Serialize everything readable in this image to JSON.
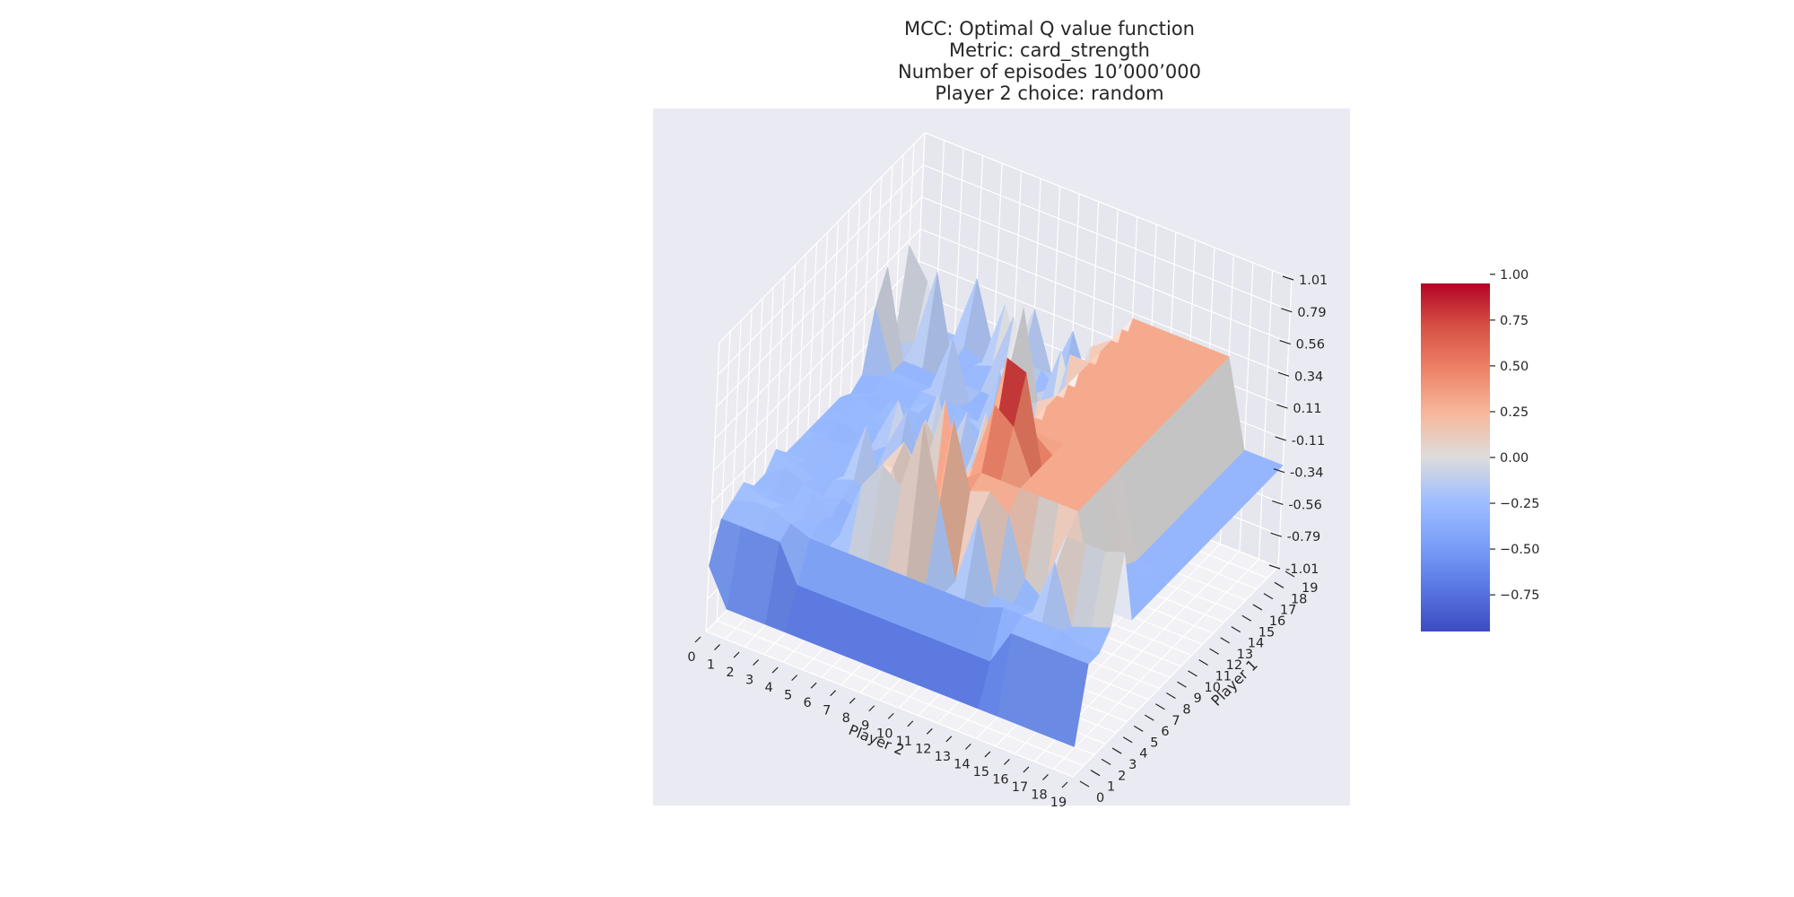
{
  "title_lines": [
    "MCC: Optimal Q value function",
    "Metric: card_strength",
    "Number of episodes 10’000’000",
    "Player 2 choice: random"
  ],
  "chart_data": {
    "type": "surface3d",
    "xlabel": "Player 2",
    "ylabel": "Player 1",
    "x_ticks": [
      "0",
      "1",
      "2",
      "3",
      "4",
      "5",
      "6",
      "7",
      "8",
      "9",
      "10",
      "11",
      "12",
      "13",
      "14",
      "15",
      "16",
      "17",
      "18",
      "19"
    ],
    "y_ticks": [
      "0",
      "1",
      "2",
      "3",
      "4",
      "5",
      "6",
      "7",
      "8",
      "9",
      "10",
      "11",
      "12",
      "13",
      "14",
      "15",
      "16",
      "17",
      "18",
      "19"
    ],
    "z_ticks": [
      "-1.01",
      "-0.79",
      "-0.56",
      "-0.34",
      "-0.11",
      "0.11",
      "0.34",
      "0.56",
      "0.79",
      "1.01"
    ],
    "zlim": [
      -1.01,
      1.01
    ],
    "colorbar_ticks": [
      "1.00",
      "0.75",
      "0.50",
      "0.25",
      "0.00",
      "−0.25",
      "−0.50",
      "−0.75"
    ],
    "colorbar_range": [
      -0.95,
      0.95
    ],
    "colormap": "coolwarm",
    "pane_color": "#eaeaf2",
    "grid": true,
    "z": [
      [
        -0.55,
        -0.3,
        -0.25,
        -0.2,
        -0.3,
        -0.3,
        -0.2,
        -0.3,
        -0.3,
        -0.3,
        -0.3,
        -0.3,
        -0.3,
        -0.35,
        -0.3,
        0.1,
        0.3,
        -0.3,
        0.3,
        -0.3
      ],
      [
        -0.8,
        -0.3,
        -0.2,
        -0.25,
        -0.3,
        -0.2,
        -0.25,
        -0.3,
        -0.2,
        -0.3,
        -0.25,
        -0.3,
        -0.25,
        -0.3,
        -0.25,
        -0.3,
        -0.3,
        -0.25,
        0.1,
        -0.3
      ],
      [
        -0.8,
        -0.3,
        -0.2,
        -0.25,
        -0.3,
        -0.25,
        -0.3,
        -0.25,
        -0.3,
        -0.3,
        -0.3,
        -0.25,
        -0.3,
        -0.3,
        -0.25,
        -0.3,
        -0.3,
        0.3,
        -0.3,
        -0.3
      ],
      [
        -0.8,
        -0.3,
        -0.25,
        -0.3,
        -0.2,
        -0.3,
        -0.25,
        -0.3,
        -0.25,
        -0.3,
        -0.25,
        -0.3,
        -0.2,
        -0.3,
        -0.25,
        -0.3,
        -0.3,
        -0.3,
        -0.25,
        0.15
      ],
      [
        -0.8,
        -0.55,
        -0.3,
        -0.25,
        -0.3,
        -0.25,
        -0.2,
        0.1,
        -0.3,
        -0.2,
        0.05,
        -0.3,
        -0.2,
        -0.2,
        -0.25,
        0.1,
        -0.3,
        -0.25,
        -0.3,
        -0.3
      ],
      [
        -0.8,
        -0.55,
        -0.3,
        -0.3,
        -0.35,
        -0.3,
        -0.25,
        -0.3,
        -0.3,
        0.1,
        -0.3,
        -0.25,
        -0.3,
        -0.3,
        -0.25,
        -0.3,
        -0.3,
        -0.2,
        0.15,
        -0.3
      ],
      [
        -0.8,
        -0.55,
        -0.3,
        0.1,
        -0.2,
        0.1,
        -0.3,
        -0.3,
        -0.3,
        -0.3,
        0.2,
        -0.3,
        -0.2,
        -0.2,
        -0.3,
        -0.3,
        -0.3,
        0.2,
        -0.2,
        0.1
      ],
      [
        -0.8,
        -0.55,
        -0.3,
        0.3,
        0.2,
        0.3,
        0.1,
        0.3,
        -0.3,
        0.05,
        -0.3,
        0.05,
        -0.25,
        -0.3,
        0.1,
        0.1,
        0.4,
        -0.3,
        -0.2,
        -0.3
      ],
      [
        -0.8,
        -0.55,
        -0.3,
        0.2,
        -0.3,
        0.1,
        -0.3,
        0.1,
        -0.3,
        -0.3,
        -0.2,
        -0.3,
        -0.3,
        -0.2,
        -0.3,
        -0.3,
        -0.25,
        -0.2,
        -0.3,
        0.05
      ],
      [
        -0.8,
        -0.55,
        -0.3,
        0.7,
        -0.3,
        0.7,
        -0.25,
        -0.25,
        0.1,
        0.3,
        -0.2,
        -0.3,
        0.1,
        -0.25,
        -0.2,
        -0.3,
        0.2,
        -0.2,
        -0.3,
        -0.3
      ],
      [
        -0.8,
        -0.55,
        -0.3,
        0.2,
        0.7,
        0.2,
        0.2,
        -0.3,
        0.2,
        -0.3,
        0.3,
        -0.25,
        0.2,
        -0.25,
        -0.3,
        0.3,
        -0.2,
        0.2,
        -0.3,
        -0.2
      ],
      [
        -0.8,
        -0.55,
        -0.3,
        -0.3,
        0.25,
        0.3,
        0.7,
        0.95,
        0.5,
        0.3,
        0.3,
        0.3,
        0.3,
        0.3,
        0.3,
        0.3,
        0.3,
        0.3,
        0.3,
        0.3
      ],
      [
        -0.8,
        -0.55,
        -0.3,
        0.2,
        0.3,
        0.3,
        0.6,
        0.9,
        0.4,
        0.3,
        0.3,
        0.3,
        0.3,
        0.3,
        0.3,
        0.3,
        0.3,
        0.3,
        0.3,
        0.3
      ],
      [
        -0.8,
        -0.55,
        -0.3,
        -0.3,
        0.2,
        0.3,
        0.3,
        0.3,
        0.3,
        0.3,
        0.3,
        0.3,
        0.3,
        0.3,
        0.3,
        0.3,
        0.3,
        0.3,
        0.3,
        0.3
      ],
      [
        -0.8,
        -0.55,
        -0.25,
        -0.3,
        -0.2,
        0.3,
        0.3,
        0.3,
        0.3,
        0.3,
        0.3,
        0.3,
        0.3,
        0.3,
        0.3,
        0.3,
        0.3,
        0.3,
        0.3,
        0.3
      ],
      [
        -0.8,
        -0.3,
        -0.25,
        -0.3,
        -0.3,
        0.3,
        0.3,
        0.3,
        0.3,
        0.3,
        0.3,
        0.3,
        0.3,
        0.3,
        0.3,
        0.3,
        0.3,
        0.3,
        0.3,
        0.3
      ],
      [
        -0.8,
        -0.3,
        -0.25,
        0.1,
        0.2,
        0.3,
        0.3,
        0.3,
        0.3,
        0.3,
        0.3,
        0.3,
        0.3,
        0.3,
        0.3,
        0.3,
        0.3,
        0.3,
        0.3,
        0.3
      ],
      [
        -0.8,
        -0.3,
        -0.25,
        -0.3,
        0.2,
        -0.3,
        -0.3,
        -0.3,
        -0.25,
        -0.3,
        -0.3,
        -0.3,
        -0.3,
        -0.3,
        -0.3,
        -0.3,
        -0.3,
        -0.3,
        -0.3,
        -0.3
      ],
      [
        -0.8,
        -0.3,
        -0.3,
        -0.25,
        0.2,
        -0.3,
        -0.3,
        -0.3,
        -0.3,
        -0.3,
        -0.3,
        -0.3,
        -0.3,
        -0.3,
        -0.3,
        -0.3,
        -0.3,
        -0.3,
        -0.3,
        -0.3
      ],
      [
        -0.8,
        -0.3,
        -0.3,
        -0.2,
        0.25,
        -0.3,
        -0.3,
        -0.3,
        -0.3,
        -0.3,
        -0.3,
        -0.3,
        -0.3,
        -0.3,
        -0.3,
        -0.3,
        -0.3,
        -0.3,
        -0.3,
        -0.3
      ]
    ]
  }
}
